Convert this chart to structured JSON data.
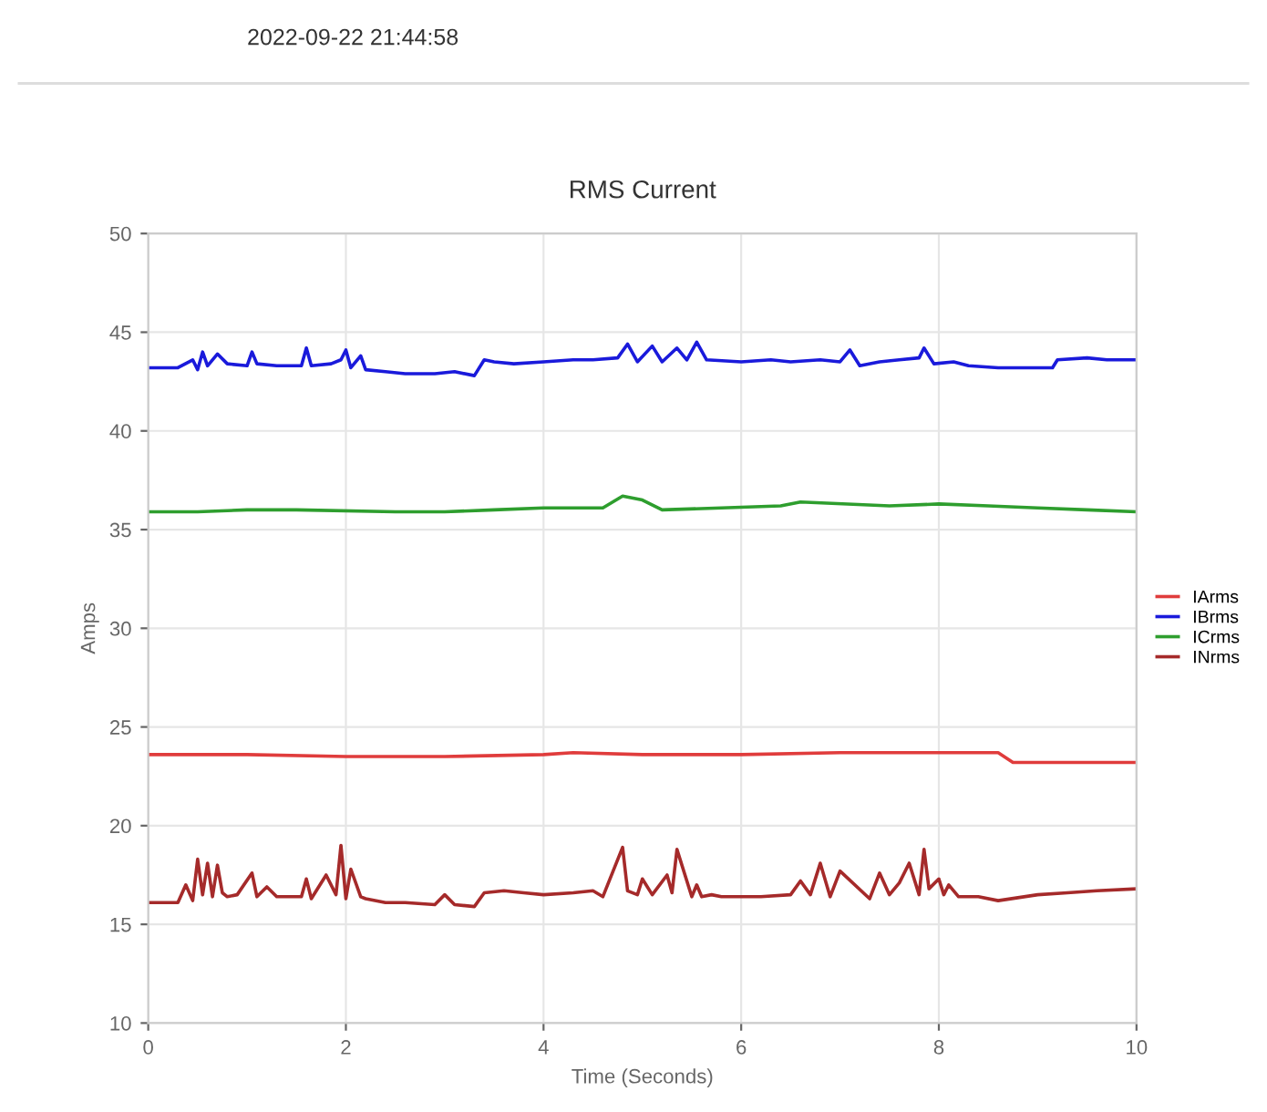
{
  "chart_data": {
    "type": "line",
    "title": "RMS Current",
    "xlabel": "Time (Seconds)",
    "ylabel": "Amps",
    "annotations": [
      "2022-09-22 21:44:58"
    ],
    "xlim": [
      0,
      10
    ],
    "xticks": [
      0,
      2,
      4,
      6,
      8,
      10
    ],
    "ylim": [
      10,
      50
    ],
    "yticks": [
      10,
      15,
      20,
      25,
      30,
      35,
      40,
      45,
      50
    ],
    "grid": true,
    "legend": "right",
    "marker": "none",
    "line_style": "solid",
    "series": [
      {
        "name": "IArms",
        "color": "#e03c3c",
        "x": [
          0,
          1,
          2,
          3,
          4,
          4.3,
          5,
          6,
          7,
          8,
          8.6,
          8.75,
          9.5,
          10
        ],
        "values": [
          23.6,
          23.6,
          23.5,
          23.5,
          23.6,
          23.7,
          23.6,
          23.6,
          23.7,
          23.7,
          23.7,
          23.2,
          23.2,
          23.2
        ]
      },
      {
        "name": "IBrms",
        "color": "#1a1adb",
        "x": [
          0,
          0.3,
          0.45,
          0.5,
          0.55,
          0.6,
          0.7,
          0.8,
          1.0,
          1.05,
          1.1,
          1.3,
          1.55,
          1.6,
          1.65,
          1.85,
          1.95,
          2.0,
          2.05,
          2.15,
          2.2,
          2.4,
          2.6,
          2.9,
          3.1,
          3.3,
          3.4,
          3.5,
          3.7,
          4.0,
          4.3,
          4.5,
          4.75,
          4.85,
          4.95,
          5.1,
          5.2,
          5.35,
          5.45,
          5.55,
          5.65,
          6.0,
          6.3,
          6.5,
          6.8,
          7.0,
          7.1,
          7.2,
          7.4,
          7.6,
          7.8,
          7.85,
          7.95,
          8.15,
          8.3,
          8.6,
          8.9,
          9.15,
          9.2,
          9.5,
          9.7,
          10.0
        ],
        "values": [
          43.2,
          43.2,
          43.6,
          43.1,
          44.0,
          43.3,
          43.9,
          43.4,
          43.3,
          44.0,
          43.4,
          43.3,
          43.3,
          44.2,
          43.3,
          43.4,
          43.6,
          44.1,
          43.2,
          43.8,
          43.1,
          43.0,
          42.9,
          42.9,
          43.0,
          42.8,
          43.6,
          43.5,
          43.4,
          43.5,
          43.6,
          43.6,
          43.7,
          44.4,
          43.5,
          44.3,
          43.5,
          44.2,
          43.6,
          44.5,
          43.6,
          43.5,
          43.6,
          43.5,
          43.6,
          43.5,
          44.1,
          43.3,
          43.5,
          43.6,
          43.7,
          44.2,
          43.4,
          43.5,
          43.3,
          43.2,
          43.2,
          43.2,
          43.6,
          43.7,
          43.6,
          43.6
        ]
      },
      {
        "name": "ICrms",
        "color": "#2e9e2e",
        "x": [
          0,
          0.5,
          1.0,
          1.5,
          2.5,
          3.0,
          3.5,
          4.0,
          4.6,
          4.8,
          5.0,
          5.2,
          5.8,
          6.4,
          6.6,
          7.5,
          8.0,
          8.5,
          9.0,
          9.5,
          10.0
        ],
        "values": [
          35.9,
          35.9,
          36.0,
          36.0,
          35.9,
          35.9,
          36.0,
          36.1,
          36.1,
          36.7,
          36.5,
          36.0,
          36.1,
          36.2,
          36.4,
          36.2,
          36.3,
          36.2,
          36.1,
          36.0,
          35.9
        ]
      },
      {
        "name": "INrms",
        "color": "#a52a2a",
        "x": [
          0,
          0.3,
          0.38,
          0.45,
          0.5,
          0.55,
          0.6,
          0.65,
          0.7,
          0.75,
          0.8,
          0.9,
          1.05,
          1.1,
          1.2,
          1.3,
          1.55,
          1.6,
          1.65,
          1.8,
          1.9,
          1.95,
          2.0,
          2.05,
          2.15,
          2.2,
          2.4,
          2.6,
          2.9,
          3.0,
          3.1,
          3.3,
          3.4,
          3.6,
          3.8,
          4.0,
          4.3,
          4.5,
          4.6,
          4.8,
          4.85,
          4.95,
          5.0,
          5.1,
          5.25,
          5.3,
          5.35,
          5.5,
          5.55,
          5.6,
          5.7,
          5.8,
          6.2,
          6.5,
          6.6,
          6.7,
          6.8,
          6.9,
          7.0,
          7.3,
          7.4,
          7.5,
          7.6,
          7.7,
          7.8,
          7.85,
          7.9,
          8.0,
          8.05,
          8.1,
          8.2,
          8.4,
          8.6,
          9.0,
          9.3,
          9.6,
          10.0
        ],
        "values": [
          16.1,
          16.1,
          17.0,
          16.2,
          18.3,
          16.5,
          18.1,
          16.4,
          18.0,
          16.6,
          16.4,
          16.5,
          17.6,
          16.4,
          16.9,
          16.4,
          16.4,
          17.3,
          16.3,
          17.5,
          16.5,
          19.0,
          16.3,
          17.8,
          16.4,
          16.3,
          16.1,
          16.1,
          16.0,
          16.5,
          16.0,
          15.9,
          16.6,
          16.7,
          16.6,
          16.5,
          16.6,
          16.7,
          16.4,
          18.9,
          16.7,
          16.5,
          17.3,
          16.5,
          17.5,
          16.6,
          18.8,
          16.4,
          17.0,
          16.4,
          16.5,
          16.4,
          16.4,
          16.5,
          17.2,
          16.5,
          18.1,
          16.4,
          17.7,
          16.3,
          17.6,
          16.5,
          17.1,
          18.1,
          16.5,
          18.8,
          16.8,
          17.3,
          16.5,
          17.0,
          16.4,
          16.4,
          16.2,
          16.5,
          16.6,
          16.7,
          16.8
        ]
      }
    ]
  }
}
